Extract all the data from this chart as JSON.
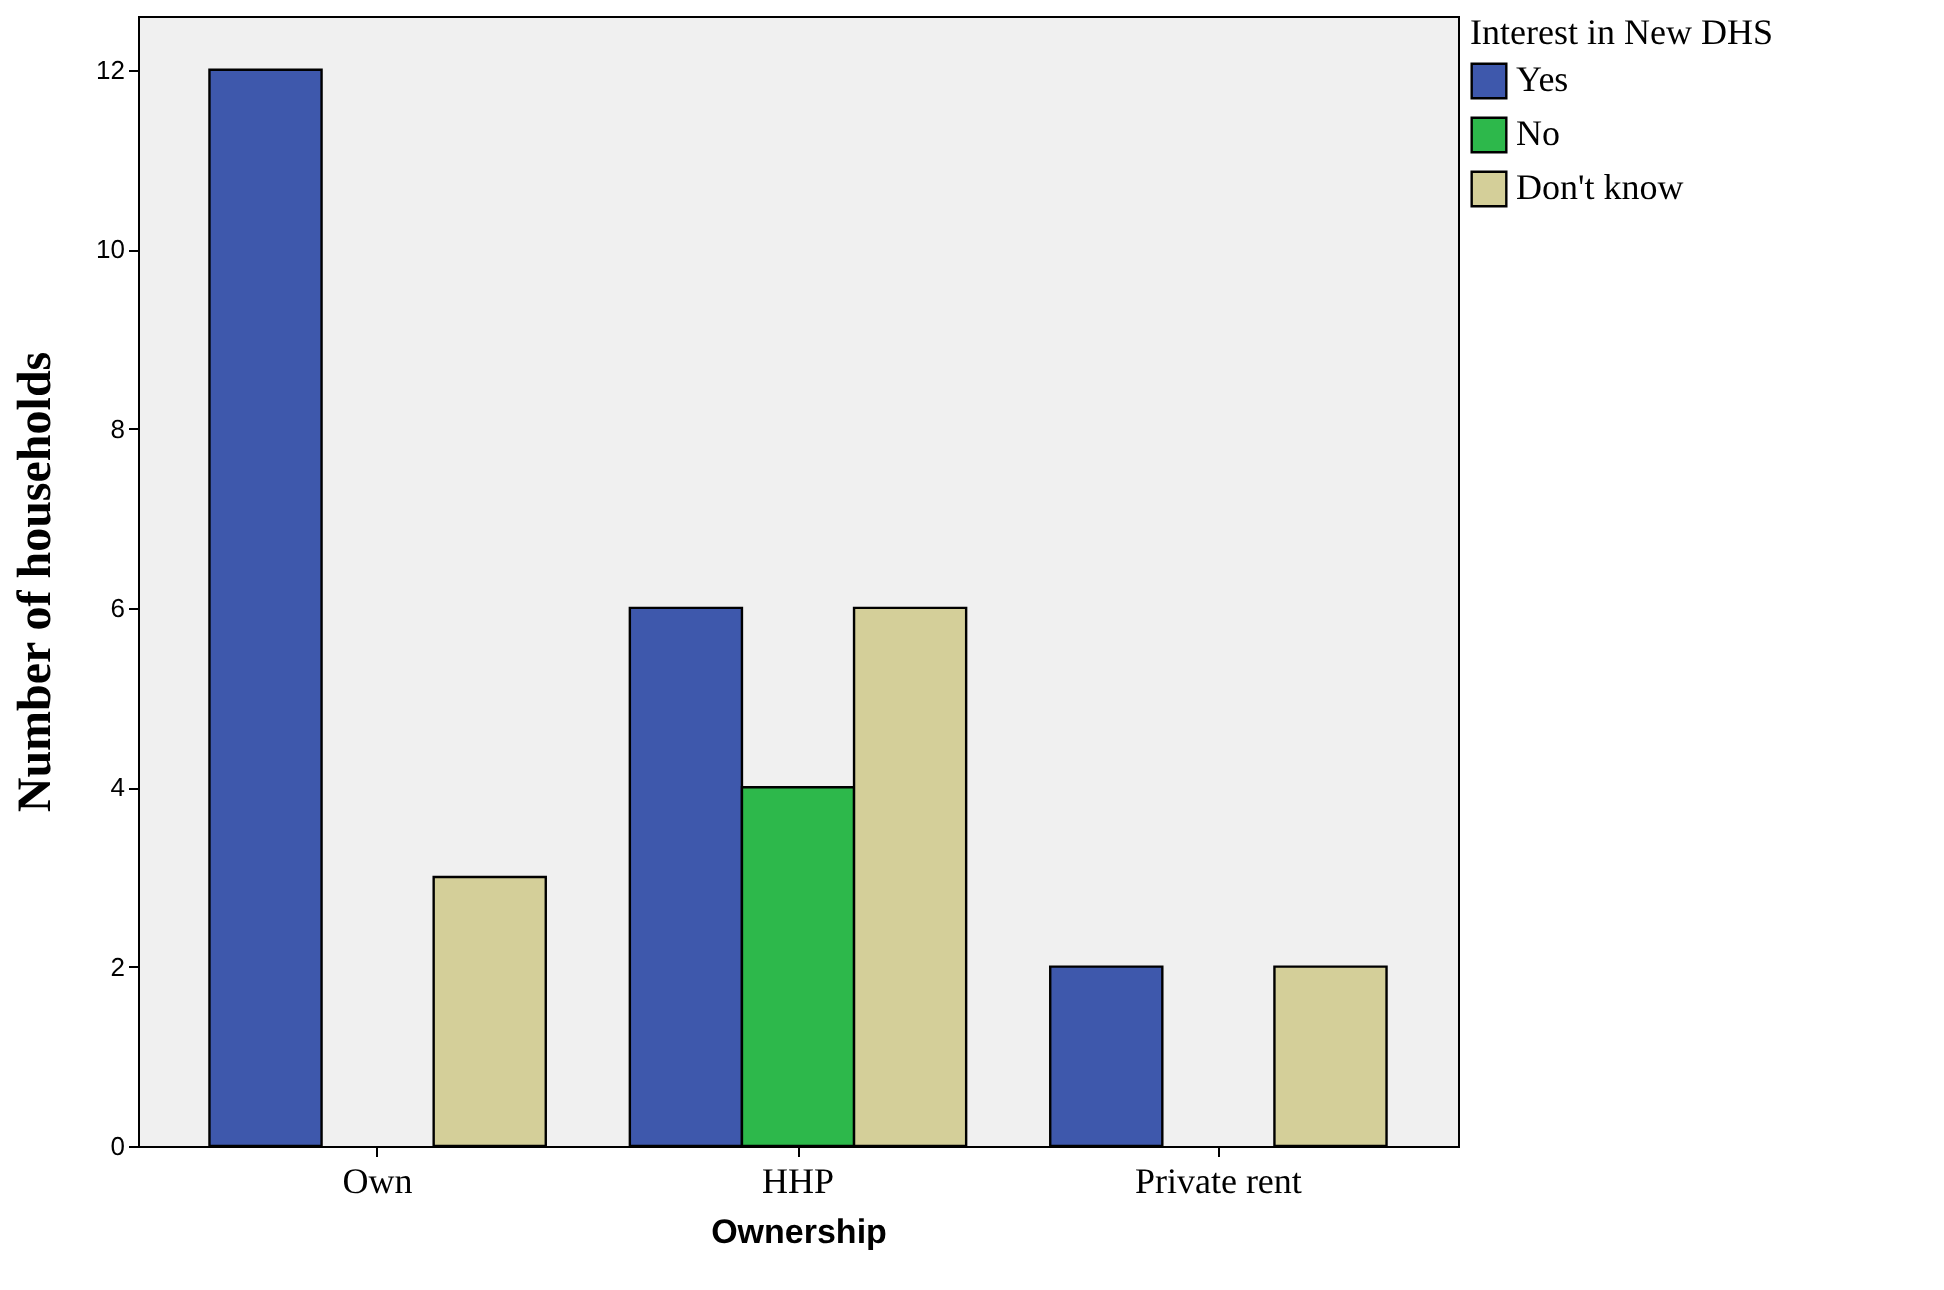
{
  "chart_data": {
    "type": "bar",
    "xlabel": "Ownership",
    "ylabel": "Number of households",
    "legend_title": "Interest in New DHS",
    "categories": [
      "Own",
      "HHP",
      "Private rent"
    ],
    "series": [
      {
        "name": "Yes",
        "color": "#3e58ac",
        "values": [
          12,
          6,
          2
        ]
      },
      {
        "name": "No",
        "color": "#2db84b",
        "values": [
          null,
          4,
          null
        ]
      },
      {
        "name": "Don't know",
        "color": "#d4cf99",
        "values": [
          3,
          6,
          2
        ]
      }
    ],
    "ylim": [
      0,
      12.6
    ],
    "yticks": [
      0,
      2,
      4,
      6,
      8,
      10,
      12
    ],
    "grid": false,
    "legend": "right"
  }
}
